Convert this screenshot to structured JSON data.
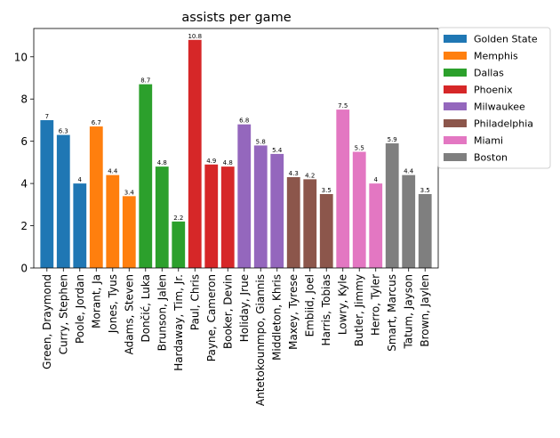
{
  "chart_data": {
    "type": "bar",
    "title": "assists per game",
    "xlabel": "",
    "ylabel": "",
    "ylim": [
      0,
      11.34
    ],
    "yticks": [
      0,
      2,
      4,
      6,
      8,
      10
    ],
    "grid": false,
    "legend_position": "outside-top-right",
    "categories": [
      "Green, Draymond",
      "Curry, Stephen",
      "Poole, Jordan",
      "Morant, Ja",
      "Jones, Tyus",
      "Adams, Steven",
      "Dončić, Luka",
      "Brunson, Jalen",
      "Hardaway, Tim, Jr.",
      "Paul, Chris",
      "Payne, Cameron",
      "Booker, Devin",
      "Holiday, Jrue",
      "Antetokounmpo, Giannis",
      "Middleton, Khris",
      "Maxey, Tyrese",
      "Embiid, Joel",
      "Harris, Tobias",
      "Lowry, Kyle",
      "Butler, Jimmy",
      "Herro, Tyler",
      "Smart, Marcus",
      "Tatum, Jayson",
      "Brown, Jaylen"
    ],
    "values": [
      7,
      6.3,
      4,
      6.7,
      4.4,
      3.4,
      8.7,
      4.8,
      2.2,
      10.8,
      4.9,
      4.8,
      6.8,
      5.8,
      5.4,
      4.3,
      4.2,
      3.5,
      7.5,
      5.5,
      4,
      5.9,
      4.4,
      3.5
    ],
    "labels": [
      "7",
      "6.3",
      "4",
      "6.7",
      "4.4",
      "3.4",
      "8.7",
      "4.8",
      "2.2",
      "10.8",
      "4.9",
      "4.8",
      "6.8",
      "5.8",
      "5.4",
      "4.3",
      "4.2",
      "3.5",
      "7.5",
      "5.5",
      "4",
      "5.9",
      "4.4",
      "3.5"
    ],
    "groups": [
      0,
      0,
      0,
      1,
      1,
      1,
      2,
      2,
      2,
      3,
      3,
      3,
      4,
      4,
      4,
      5,
      5,
      5,
      6,
      6,
      6,
      7,
      7,
      7
    ],
    "series": [
      {
        "name": "Golden State",
        "color": "#1f77b4"
      },
      {
        "name": "Memphis",
        "color": "#ff7f0e"
      },
      {
        "name": "Dallas",
        "color": "#2ca02c"
      },
      {
        "name": "Phoenix",
        "color": "#d62728"
      },
      {
        "name": "Milwaukee",
        "color": "#9467bd"
      },
      {
        "name": "Philadelphia",
        "color": "#8c564b"
      },
      {
        "name": "Miami",
        "color": "#e377c2"
      },
      {
        "name": "Boston",
        "color": "#7f7f7f"
      }
    ]
  }
}
